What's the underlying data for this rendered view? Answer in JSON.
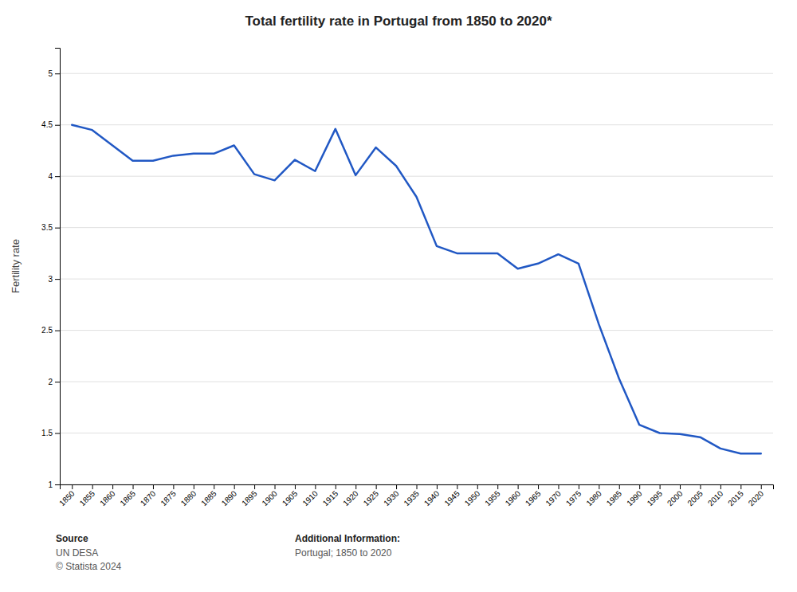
{
  "chart_data": {
    "type": "line",
    "title": "Total fertility rate in Portugal from 1850 to 2020*",
    "y_label": "Fertility rate",
    "color": "#2158c4",
    "grid": true,
    "x": [
      1850,
      1855,
      1860,
      1865,
      1870,
      1875,
      1880,
      1885,
      1890,
      1895,
      1900,
      1905,
      1910,
      1915,
      1920,
      1925,
      1930,
      1935,
      1940,
      1945,
      1950,
      1955,
      1960,
      1965,
      1970,
      1975,
      1980,
      1985,
      1990,
      1995,
      2000,
      2005,
      2010,
      2015,
      2020
    ],
    "values": [
      4.5,
      4.45,
      4.3,
      4.15,
      4.15,
      4.2,
      4.22,
      4.22,
      4.3,
      4.02,
      3.96,
      4.16,
      4.05,
      4.46,
      4.01,
      4.28,
      4.1,
      3.8,
      3.32,
      3.25,
      3.25,
      3.25,
      3.1,
      3.15,
      3.24,
      3.15,
      2.56,
      2.03,
      1.58,
      1.5,
      1.49,
      1.46,
      1.35,
      1.3,
      1.3
    ],
    "xlim": [
      1847,
      2023
    ],
    "xticks": [
      1850,
      1855,
      1860,
      1865,
      1870,
      1875,
      1880,
      1885,
      1890,
      1895,
      1900,
      1905,
      1910,
      1915,
      1920,
      1925,
      1930,
      1935,
      1940,
      1945,
      1950,
      1955,
      1960,
      1965,
      1970,
      1975,
      1980,
      1985,
      1990,
      1995,
      2000,
      2005,
      2010,
      2015,
      2020
    ],
    "ylim": [
      1.0,
      5.25
    ],
    "yticks": [
      1,
      1.5,
      2,
      2.5,
      3,
      3.5,
      4,
      4.5,
      5
    ],
    "annotations": [
      "Source",
      "UN DESA",
      "© Statista 2024",
      "Additional Information:",
      "Portugal; 1850 to 2020"
    ]
  }
}
